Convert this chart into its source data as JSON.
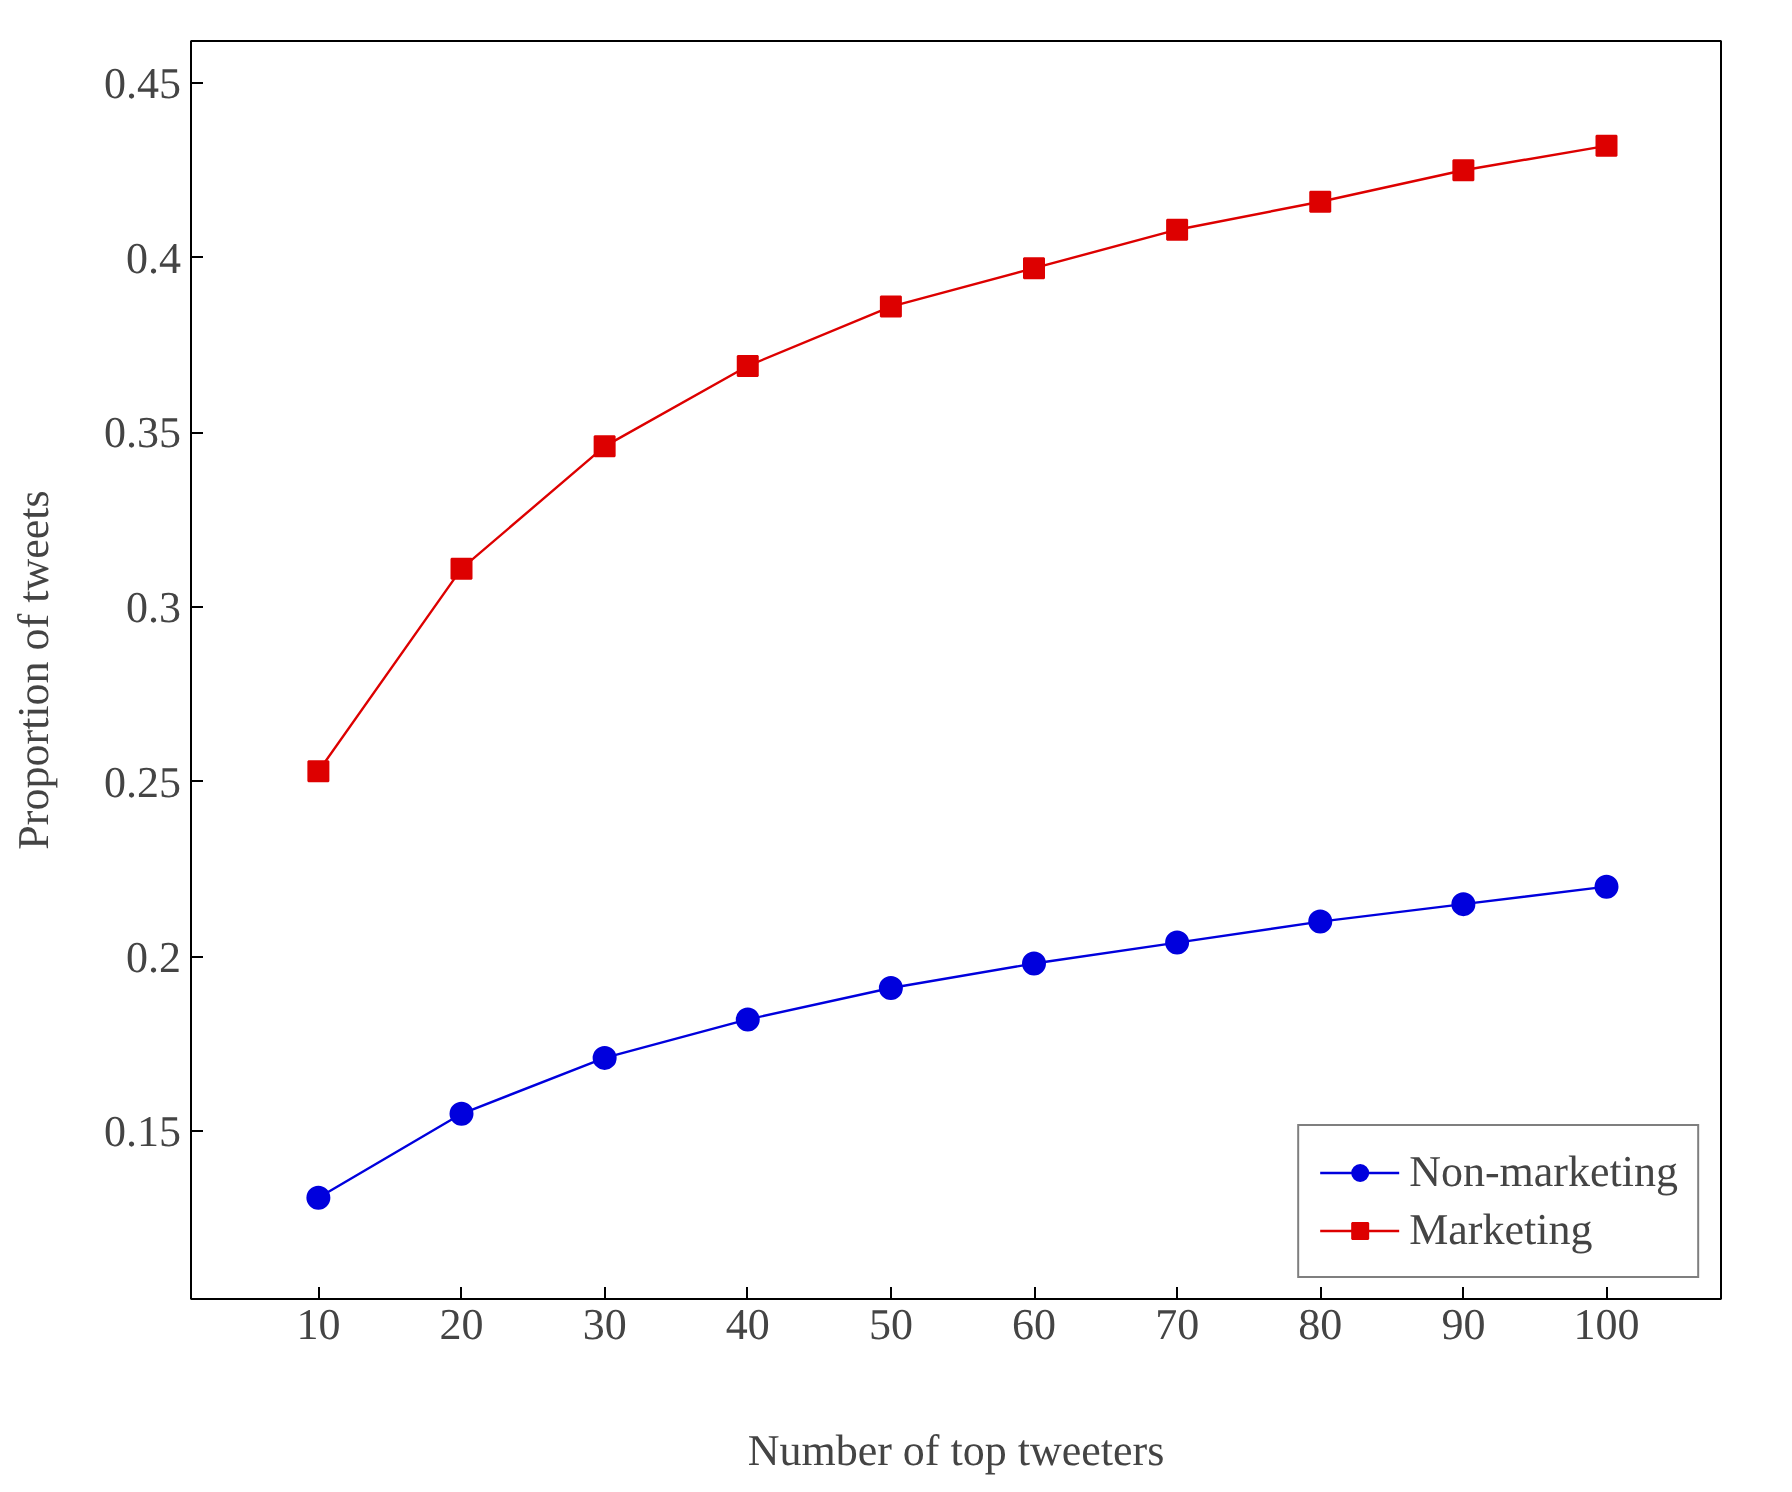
{
  "chart_data": {
    "type": "line",
    "xlabel": "Number of top tweeters",
    "ylabel": "Proportion of tweets",
    "x": [
      10,
      20,
      30,
      40,
      50,
      60,
      70,
      80,
      90,
      100
    ],
    "series": [
      {
        "name": "Non-marketing",
        "color": "#0000dd",
        "marker": "circle",
        "values": [
          0.131,
          0.155,
          0.171,
          0.182,
          0.191,
          0.198,
          0.204,
          0.21,
          0.215,
          0.22
        ]
      },
      {
        "name": "Marketing",
        "color": "#dd0000",
        "marker": "square",
        "values": [
          0.253,
          0.311,
          0.346,
          0.369,
          0.386,
          0.397,
          0.408,
          0.416,
          0.425,
          0.432
        ]
      }
    ],
    "xlim": [
      1.1,
      108
    ],
    "ylim": [
      0.102,
      0.462
    ],
    "xticks": [
      10,
      20,
      30,
      40,
      50,
      60,
      70,
      80,
      90,
      100
    ],
    "yticks": [
      0.15,
      0.2,
      0.25,
      0.3,
      0.35,
      0.4,
      0.45
    ],
    "grid": false,
    "legend": "bottom right",
    "line_style": "solid"
  }
}
